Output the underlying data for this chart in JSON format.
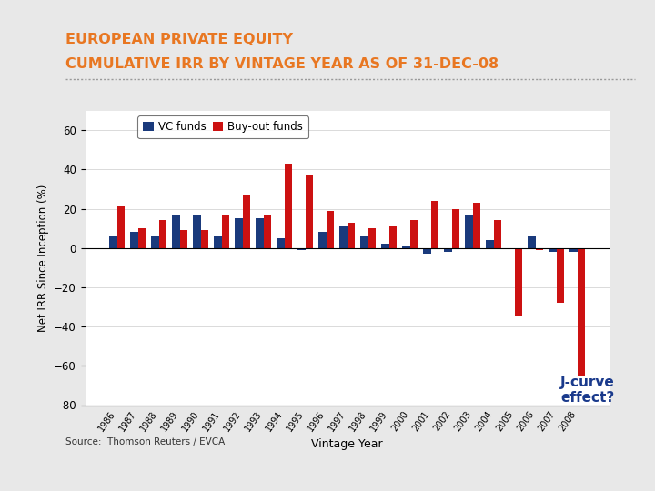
{
  "title_line1": "EUROPEAN PRIVATE EQUITY",
  "title_line2": "CUMULATIVE IRR BY VINTAGE YEAR AS OF 31-DEC-08",
  "title_color": "#E87722",
  "xlabel": "Vintage Year",
  "ylabel": "Net IRR Since Inception (%)",
  "annotation": "J-curve\neffect?",
  "annotation_color": "#1a3a8c",
  "source": "Source:  Thomson Reuters / EVCA",
  "page_bg": "#e8e8e8",
  "chart_bg": "#ffffff",
  "ylim": [
    -80,
    70
  ],
  "yticks": [
    -80,
    -60,
    -40,
    -20,
    0,
    20,
    40,
    60
  ],
  "vc_color": "#1a3a7c",
  "bo_color": "#cc1111",
  "years": [
    "1986",
    "1987",
    "1988",
    "1989",
    "1990",
    "1991",
    "1992",
    "1993",
    "1994",
    "1995",
    "1996",
    "1997",
    "1998",
    "1999",
    "2000",
    "2001",
    "2002",
    "2003",
    "2004",
    "2005",
    "2006",
    "2007",
    "2008"
  ],
  "vc_values": [
    6,
    8,
    6,
    17,
    17,
    6,
    15,
    15,
    5,
    -1,
    8,
    11,
    6,
    2,
    1,
    -3,
    -2,
    17,
    4,
    0,
    6,
    -2,
    -2
  ],
  "bo_values": [
    21,
    10,
    14,
    9,
    9,
    17,
    27,
    17,
    43,
    37,
    19,
    13,
    10,
    11,
    14,
    24,
    20,
    23,
    14,
    -35,
    -1,
    -28,
    -65
  ]
}
